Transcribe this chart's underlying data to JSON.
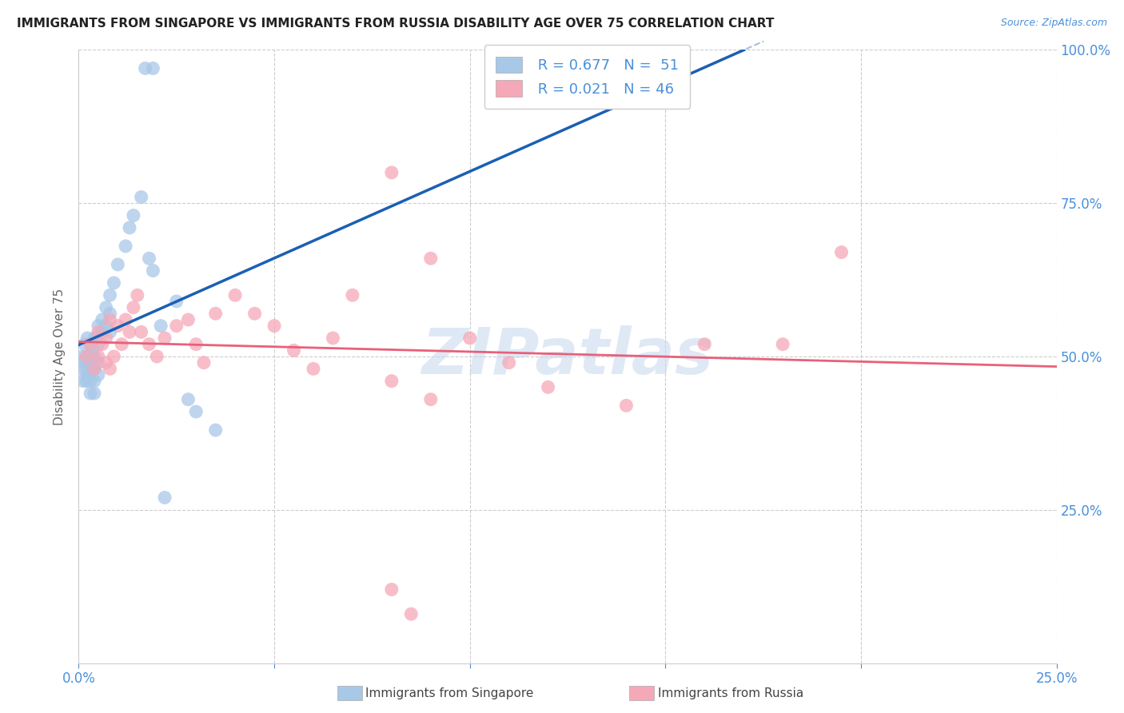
{
  "title": "IMMIGRANTS FROM SINGAPORE VS IMMIGRANTS FROM RUSSIA DISABILITY AGE OVER 75 CORRELATION CHART",
  "source": "Source: ZipAtlas.com",
  "ylabel": "Disability Age Over 75",
  "xlim": [
    0,
    0.25
  ],
  "ylim": [
    0,
    1.0
  ],
  "legend_r1": "R = 0.677",
  "legend_n1": "N =  51",
  "legend_r2": "R = 0.021",
  "legend_n2": "N = 46",
  "color_singapore": "#a8c8e8",
  "color_russia": "#f5a8b8",
  "color_singapore_line": "#1a5fb4",
  "color_russia_line": "#e8607a",
  "color_axis_blue": "#4a90d9",
  "color_grid": "#cccccc",
  "watermark": "ZIPatlas",
  "sg_x": [
    0.0008,
    0.001,
    0.0012,
    0.0015,
    0.0015,
    0.002,
    0.002,
    0.002,
    0.0022,
    0.0022,
    0.0025,
    0.003,
    0.003,
    0.003,
    0.003,
    0.003,
    0.003,
    0.0035,
    0.004,
    0.004,
    0.004,
    0.004,
    0.004,
    0.0045,
    0.005,
    0.005,
    0.005,
    0.005,
    0.006,
    0.006,
    0.007,
    0.007,
    0.008,
    0.008,
    0.008,
    0.009,
    0.01,
    0.012,
    0.013,
    0.014,
    0.016,
    0.018,
    0.019,
    0.021,
    0.022,
    0.025,
    0.028,
    0.03,
    0.035,
    0.017,
    0.019
  ],
  "sg_y": [
    0.48,
    0.5,
    0.46,
    0.52,
    0.49,
    0.5,
    0.48,
    0.46,
    0.53,
    0.47,
    0.5,
    0.52,
    0.5,
    0.48,
    0.46,
    0.44,
    0.49,
    0.51,
    0.53,
    0.5,
    0.48,
    0.46,
    0.44,
    0.53,
    0.55,
    0.52,
    0.49,
    0.47,
    0.56,
    0.54,
    0.58,
    0.55,
    0.6,
    0.57,
    0.54,
    0.62,
    0.65,
    0.68,
    0.71,
    0.73,
    0.76,
    0.66,
    0.64,
    0.55,
    0.27,
    0.59,
    0.43,
    0.41,
    0.38,
    0.97,
    0.97
  ],
  "ru_x": [
    0.002,
    0.003,
    0.004,
    0.005,
    0.005,
    0.006,
    0.007,
    0.007,
    0.008,
    0.008,
    0.009,
    0.01,
    0.011,
    0.012,
    0.013,
    0.014,
    0.015,
    0.016,
    0.018,
    0.02,
    0.022,
    0.025,
    0.028,
    0.03,
    0.032,
    0.035,
    0.04,
    0.045,
    0.05,
    0.055,
    0.06,
    0.065,
    0.07,
    0.08,
    0.09,
    0.1,
    0.11,
    0.12,
    0.14,
    0.16,
    0.18,
    0.195,
    0.08,
    0.09,
    0.08,
    0.085
  ],
  "ru_y": [
    0.5,
    0.52,
    0.48,
    0.54,
    0.5,
    0.52,
    0.53,
    0.49,
    0.56,
    0.48,
    0.5,
    0.55,
    0.52,
    0.56,
    0.54,
    0.58,
    0.6,
    0.54,
    0.52,
    0.5,
    0.53,
    0.55,
    0.56,
    0.52,
    0.49,
    0.57,
    0.6,
    0.57,
    0.55,
    0.51,
    0.48,
    0.53,
    0.6,
    0.46,
    0.43,
    0.53,
    0.49,
    0.45,
    0.42,
    0.52,
    0.52,
    0.67,
    0.8,
    0.66,
    0.12,
    0.08
  ]
}
